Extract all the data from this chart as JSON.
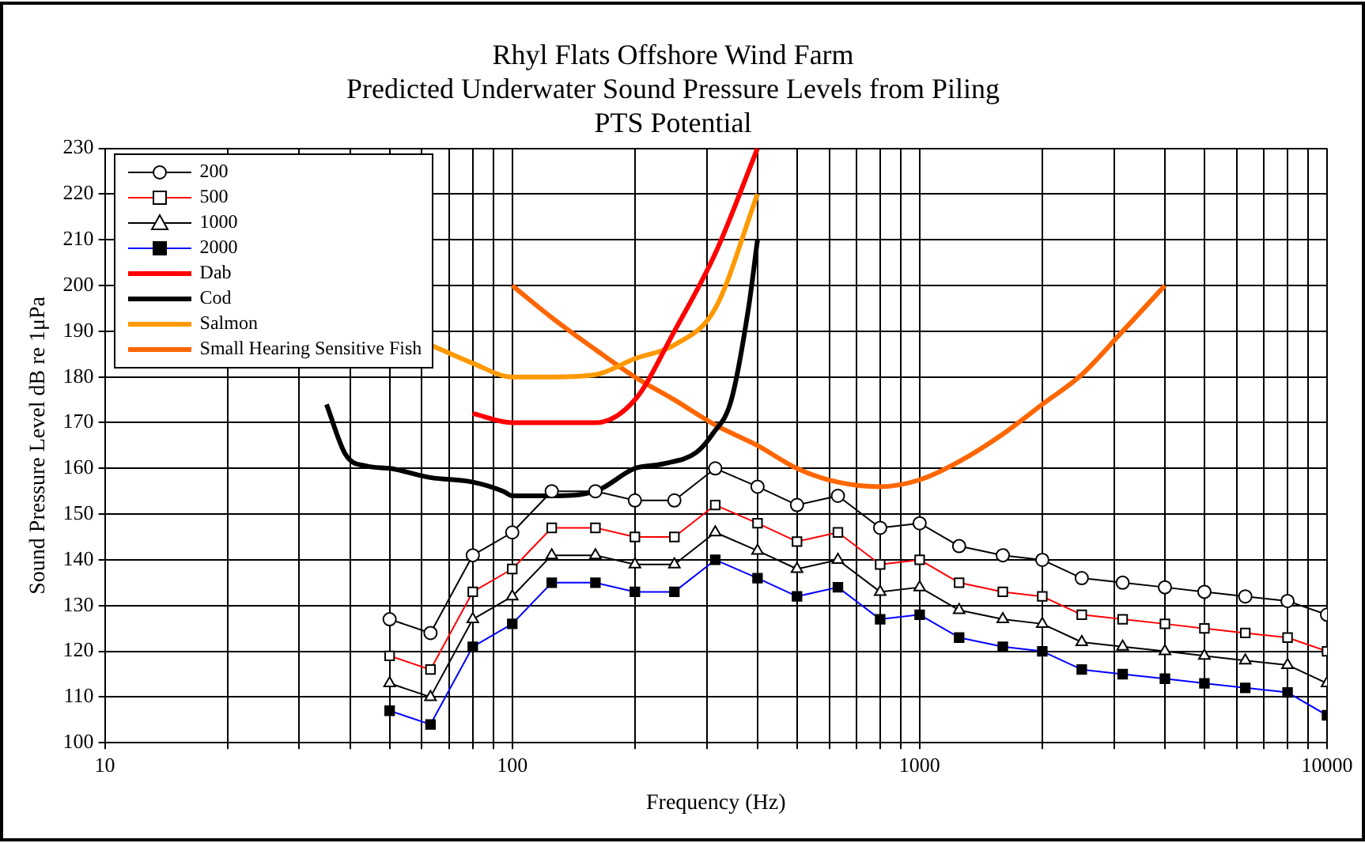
{
  "chart_data": {
    "type": "line",
    "title": "Rhyl Flats Offshore Wind Farm\nPredicted Underwater Sound Pressure Levels from Piling\nPTS Potential",
    "xlabel": "Frequency (Hz)",
    "ylabel": "Sound Pressure Level dB re 1μPa",
    "log": "x",
    "grid": true,
    "legend": "top left",
    "line_style": "solid",
    "xlim": [
      10,
      10000
    ],
    "ylim": [
      100,
      230
    ],
    "xticks": [
      10,
      {
        "value": 20,
        "label": null
      },
      {
        "value": 30,
        "label": null
      },
      {
        "value": 40,
        "label": null
      },
      {
        "value": 50,
        "label": null
      },
      {
        "value": 60,
        "label": null
      },
      {
        "value": 70,
        "label": null
      },
      {
        "value": 80,
        "label": null
      },
      {
        "value": 90,
        "label": null
      },
      100,
      {
        "value": 200,
        "label": null
      },
      {
        "value": 300,
        "label": null
      },
      {
        "value": 400,
        "label": null
      },
      {
        "value": 500,
        "label": null
      },
      {
        "value": 600,
        "label": null
      },
      {
        "value": 700,
        "label": null
      },
      {
        "value": 800,
        "label": null
      },
      {
        "value": 900,
        "label": null
      },
      1000,
      {
        "value": 2000,
        "label": null
      },
      {
        "value": 3000,
        "label": null
      },
      {
        "value": 4000,
        "label": null
      },
      {
        "value": 5000,
        "label": null
      },
      {
        "value": 6000,
        "label": null
      },
      {
        "value": 7000,
        "label": null
      },
      {
        "value": 8000,
        "label": null
      },
      {
        "value": 9000,
        "label": null
      },
      10000
    ],
    "yticks": [
      100,
      110,
      120,
      130,
      140,
      150,
      160,
      170,
      180,
      190,
      200,
      210,
      220,
      230
    ],
    "x": [
      50,
      63,
      80,
      100,
      125,
      160,
      200,
      250,
      315,
      400,
      500,
      630,
      800,
      1000,
      1250,
      1600,
      2000,
      2500,
      3150,
      4000,
      5000,
      6300,
      8000,
      10000
    ],
    "series": [
      {
        "name": "200",
        "color": "#000000",
        "marker": "circle",
        "values": [
          127,
          124,
          141,
          146,
          155,
          155,
          153,
          153,
          160,
          156,
          152,
          154,
          147,
          148,
          143,
          141,
          140,
          136,
          135,
          134,
          133,
          132,
          131,
          128
        ]
      },
      {
        "name": "500",
        "color": "#ff0000",
        "marker": "square",
        "values": [
          119,
          116,
          133,
          138,
          147,
          147,
          145,
          145,
          152,
          148,
          144,
          146,
          139,
          140,
          135,
          133,
          132,
          128,
          127,
          126,
          125,
          124,
          123,
          120
        ]
      },
      {
        "name": "1000",
        "color": "#000000",
        "marker": "triangle",
        "values": [
          113,
          110,
          127,
          132,
          141,
          141,
          139,
          139,
          146,
          142,
          138,
          140,
          133,
          134,
          129,
          127,
          126,
          122,
          121,
          120,
          119,
          118,
          117,
          113
        ]
      },
      {
        "name": "2000",
        "color": "#0000ff",
        "marker": "square",
        "values": [
          107,
          104,
          121,
          126,
          135,
          135,
          133,
          133,
          140,
          136,
          132,
          134,
          127,
          128,
          123,
          121,
          120,
          116,
          115,
          114,
          113,
          112,
          111,
          106
        ]
      },
      {
        "name": "Dab",
        "color": "#ff0000",
        "marker": "none",
        "x": [
          80,
          100,
          125,
          160,
          200,
          250,
          315,
          400
        ],
        "values": [
          172,
          170,
          170,
          170,
          175,
          190,
          207,
          230
        ]
      },
      {
        "name": "Cod",
        "color": "#000000",
        "marker": "none",
        "x": [
          35,
          39,
          44,
          50,
          63,
          80,
          95,
          100,
          125,
          160,
          200,
          235,
          283,
          310,
          345,
          380,
          400
        ],
        "values": [
          174,
          163,
          160.5,
          160,
          158,
          157,
          155,
          154,
          154,
          155,
          160,
          161,
          163.5,
          167.5,
          175,
          195,
          210
        ]
      },
      {
        "name": "Salmon",
        "color": "#ff9900",
        "marker": "none",
        "x": [
          63,
          80,
          100,
          125,
          160,
          200,
          250,
          315,
          400
        ],
        "values": [
          187,
          183,
          180,
          180,
          180.5,
          184,
          187,
          195,
          220
        ]
      },
      {
        "name": "Small Hearing Sensitive Fish",
        "color": "#ff6600",
        "marker": "none",
        "x": [
          100,
          125,
          160,
          200,
          250,
          315,
          400,
          500,
          630,
          800,
          1000,
          1250,
          1600,
          2000,
          2500,
          3150,
          4000
        ],
        "values": [
          200,
          193,
          186,
          180,
          175,
          169.5,
          165,
          160,
          157,
          156,
          157.5,
          161.5,
          167.5,
          174,
          180.5,
          190,
          200
        ]
      }
    ]
  }
}
